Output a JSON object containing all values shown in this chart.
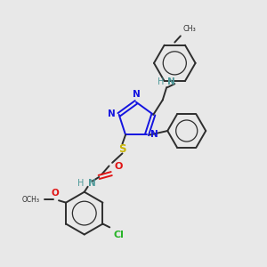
{
  "background_color": "#e8e8e8",
  "bond_color": "#2d2d2d",
  "n_color": "#1414e0",
  "s_color": "#c8b400",
  "o_color": "#e01414",
  "cl_color": "#28b428",
  "teal_color": "#4d9999",
  "figsize": [
    3.0,
    3.0
  ],
  "dpi": 100,
  "xlim": [
    0,
    10
  ],
  "ylim": [
    0,
    10
  ]
}
